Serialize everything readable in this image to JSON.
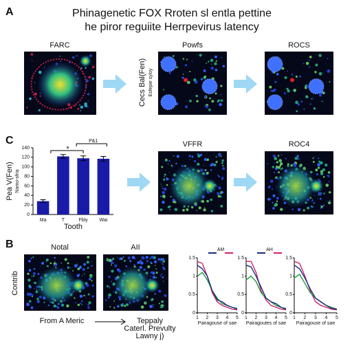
{
  "title": [
    "Phinagenetic FOX Rroten sl entla pettine",
    "he piror reguiite Herrpevirus latency"
  ],
  "panel_a": {
    "label": "A",
    "images": [
      "FARC",
      "Powfs",
      "ROCS"
    ],
    "side_label": [
      "Cecs Bal(Fen)",
      "Esfepie syloy"
    ]
  },
  "panel_c": {
    "label": "C",
    "images": [
      "VFFR",
      "ROC4"
    ],
    "chart": {
      "type": "bar",
      "ylabel": [
        "Pea V(Fen)",
        "Namo-sfria"
      ],
      "xlabel": "Tooth",
      "categories": [
        "Ma",
        "T",
        "Fbly",
        "Wai"
      ],
      "values": [
        28,
        122,
        118,
        117
      ],
      "errors": [
        3,
        4,
        5,
        5
      ],
      "color": "#1a1aa8",
      "ylim": [
        0,
        140
      ],
      "yticks": [
        0,
        20,
        40,
        60,
        80,
        100,
        120,
        140
      ],
      "annotations": [
        "*",
        "P&1"
      ]
    }
  },
  "panel_b": {
    "label": "B",
    "images": [
      "Notal",
      "AII"
    ],
    "side_label": "Contrib",
    "caption_left": "From A Meric",
    "caption_right": [
      "Teppaly",
      "Caterl. Prevulty",
      "Lawny j)"
    ],
    "plots": [
      {
        "type": "line",
        "legend": "AM",
        "xlabel": "Pairagouse of sae",
        "x": [
          1,
          1.5,
          2,
          2.5,
          3,
          3.5,
          4,
          4.5,
          5
        ],
        "xlim": [
          1,
          5
        ],
        "xticks": [
          1,
          2,
          3,
          4,
          5
        ],
        "ylim": [
          0,
          1.5
        ],
        "yticks": [
          0,
          0.5,
          1,
          1.5
        ],
        "series": [
          {
            "color": "#d0206a",
            "values": [
              1.4,
              1.35,
              1.0,
              0.55,
              0.3,
              0.2,
              0.15,
              0.1,
              0.08
            ]
          },
          {
            "color": "#1a9a3a",
            "values": [
              1.0,
              1.1,
              0.9,
              0.6,
              0.4,
              0.25,
              0.2,
              0.15,
              0.12
            ]
          },
          {
            "color": "#1a2a80",
            "values": [
              1.3,
              1.2,
              1.0,
              0.6,
              0.35,
              0.3,
              0.2,
              0.15,
              0.1
            ]
          }
        ]
      },
      {
        "type": "line",
        "legend": "AH",
        "xlabel": "Pairagoutes of sae",
        "x": [
          1,
          1.5,
          2,
          2.5,
          3,
          3.5,
          4,
          4.5,
          5
        ],
        "xlim": [
          1,
          5
        ],
        "xticks": [
          1,
          2,
          3,
          4,
          5
        ],
        "ylim": [
          0,
          1.5
        ],
        "yticks": [
          0,
          0.5,
          1,
          1.5
        ],
        "series": [
          {
            "color": "#d0206a",
            "values": [
              1.4,
              1.4,
              1.1,
              0.6,
              0.35,
              0.2,
              0.15,
              0.1,
              0.08
            ]
          },
          {
            "color": "#1a9a3a",
            "values": [
              0.9,
              1.0,
              0.85,
              0.55,
              0.4,
              0.3,
              0.2,
              0.15,
              0.12
            ]
          },
          {
            "color": "#1a2a80",
            "values": [
              1.3,
              1.25,
              1.0,
              0.7,
              0.4,
              0.3,
              0.25,
              0.15,
              0.1
            ]
          }
        ]
      },
      {
        "type": "line",
        "xlabel": "Pairagouse of sae",
        "x": [
          1,
          1.5,
          2,
          2.5,
          3,
          3.5,
          4,
          4.5,
          5
        ],
        "xlim": [
          1,
          5
        ],
        "xticks": [
          1,
          2,
          3,
          4,
          5
        ],
        "ylim": [
          0,
          1.5
        ],
        "yticks": [
          0,
          0.5,
          1,
          1.5
        ],
        "series": [
          {
            "color": "#d0206a",
            "values": [
              1.4,
              1.35,
              1.0,
              0.6,
              0.3,
              0.2,
              0.15,
              0.1,
              0.08
            ]
          },
          {
            "color": "#1a9a3a",
            "values": [
              0.95,
              1.05,
              0.8,
              0.55,
              0.4,
              0.3,
              0.2,
              0.15,
              0.1
            ]
          },
          {
            "color": "#1a2a80",
            "values": [
              1.3,
              1.2,
              0.95,
              0.65,
              0.4,
              0.3,
              0.2,
              0.12,
              0.1
            ]
          }
        ]
      }
    ]
  }
}
